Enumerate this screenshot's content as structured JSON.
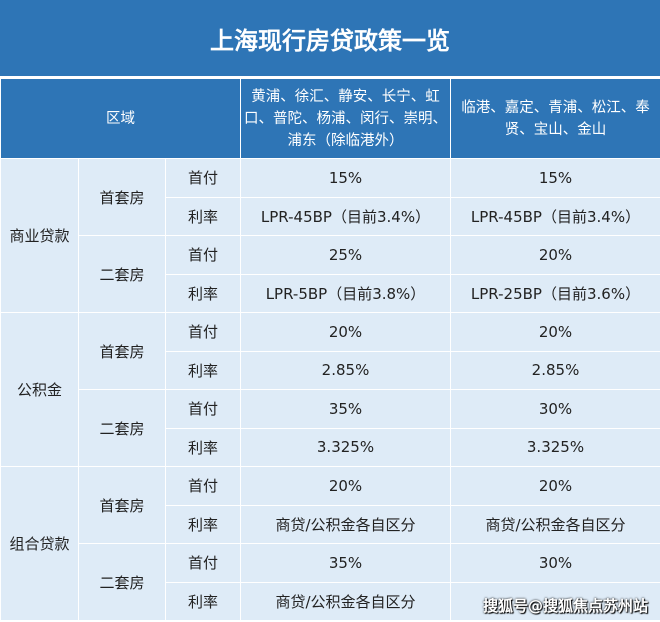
{
  "title": "上海现行房贷政策一览",
  "header": {
    "region": "区域",
    "zone1": "黄浦、徐汇、静安、长宁、虹口、普陀、杨浦、闵行、崇明、浦东（除临港外）",
    "zone2": "临港、嘉定、青浦、松江、奉贤、宝山、金山"
  },
  "groups": [
    {
      "name": "商业贷款",
      "sub": [
        {
          "name": "首套房",
          "rows": [
            [
              "首付",
              "15%",
              "15%"
            ],
            [
              "利率",
              "LPR-45BP（目前3.4%）",
              "LPR-45BP（目前3.4%）"
            ]
          ]
        },
        {
          "name": "二套房",
          "rows": [
            [
              "首付",
              "25%",
              "20%"
            ],
            [
              "利率",
              "LPR-5BP（目前3.8%）",
              "LPR-25BP（目前3.6%）"
            ]
          ]
        }
      ]
    },
    {
      "name": "公积金",
      "sub": [
        {
          "name": "首套房",
          "rows": [
            [
              "首付",
              "20%",
              "20%"
            ],
            [
              "利率",
              "2.85%",
              "2.85%"
            ]
          ]
        },
        {
          "name": "二套房",
          "rows": [
            [
              "首付",
              "35%",
              "30%"
            ],
            [
              "利率",
              "3.325%",
              "3.325%"
            ]
          ]
        }
      ]
    },
    {
      "name": "组合贷款",
      "sub": [
        {
          "name": "首套房",
          "rows": [
            [
              "首付",
              "20%",
              "20%"
            ],
            [
              "利率",
              "商贷/公积金各自区分",
              "商贷/公积金各自区分"
            ]
          ]
        },
        {
          "name": "二套房",
          "rows": [
            [
              "首付",
              "35%",
              "30%"
            ],
            [
              "利率",
              "商贷/公积金各自区分",
              ""
            ]
          ]
        }
      ]
    }
  ],
  "watermark": "搜狐号@搜狐焦点苏州站"
}
